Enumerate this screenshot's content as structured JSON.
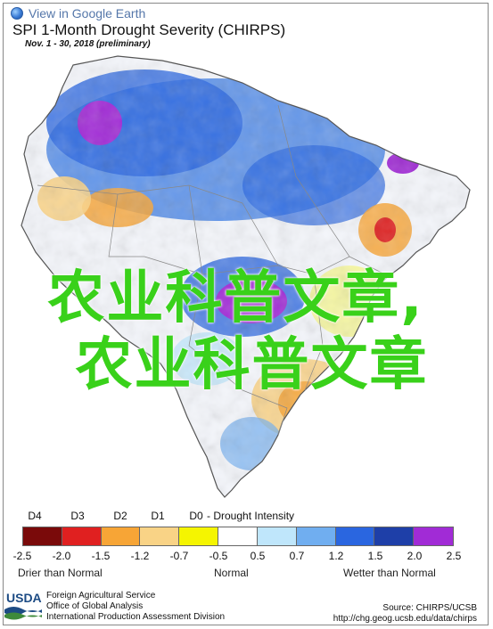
{
  "header": {
    "ge_link_label": "View in Google Earth",
    "title": "SPI 1-Month Drought Severity (CHIRPS)",
    "subtitle": "Nov. 1 - 30, 2018 (preliminary)"
  },
  "overlay": {
    "line1": "农业科普文章,",
    "line2": "农业科普文章"
  },
  "legend": {
    "drought_categories": [
      "D4",
      "D3",
      "D2",
      "D1",
      "D0"
    ],
    "drought_intensity_label": "- Drought Intensity",
    "colors": [
      "#7a0a0a",
      "#e02020",
      "#f7a536",
      "#f9d386",
      "#f5f500",
      "#ffffff",
      "#bfe6fb",
      "#70aef0",
      "#2a66e0",
      "#1e3fa8",
      "#a12bd6"
    ],
    "tick_labels": [
      "-2.5",
      "-2.0",
      "-1.5",
      "-1.2",
      "-0.7",
      "-0.5",
      "0.5",
      "0.7",
      "1.2",
      "1.5",
      "2.0",
      "2.5"
    ],
    "drier_label": "Drier than Normal",
    "normal_label": "Normal",
    "wetter_label": "Wetter than Normal"
  },
  "footer": {
    "usda_logo_text": "USDA",
    "agency_lines": [
      "Foreign Agricultural Service",
      "Office of Global Analysis",
      "International Production Assessment Division"
    ],
    "source_label": "Source: CHIRPS/UCSB",
    "source_url": "http://chg.geog.ucsb.edu/data/chirps"
  }
}
